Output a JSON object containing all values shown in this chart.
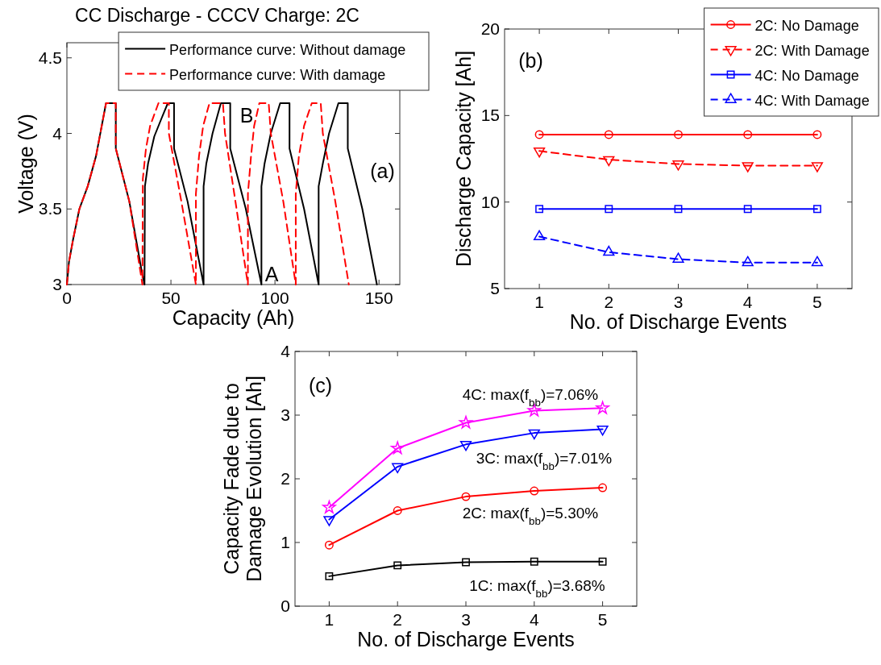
{
  "chart_data": [
    {
      "type": "line",
      "title": "CC Discharge - CCCV Charge: 2C",
      "xlabel": "Capacity (Ah)",
      "ylabel": "Voltage (V)",
      "xlim": [
        0,
        160
      ],
      "ylim": [
        3,
        4.6
      ],
      "xticks": [
        0,
        50,
        100,
        150
      ],
      "yticks": [
        3,
        3.5,
        4,
        4.5
      ],
      "legend": "top right",
      "annotations": [
        "(a)",
        "A",
        "B"
      ],
      "series": [
        {
          "name": "Performance curve: Without damage",
          "color": "#000000",
          "line_style": "solid",
          "x": [
            0,
            1,
            3,
            6,
            10,
            14,
            18.8,
            23.5,
            23.5,
            30,
            35.8,
            37.3,
            37.5,
            39,
            42,
            45.5,
            48.5,
            51.5,
            51.5,
            58,
            65.7,
            65.7,
            67,
            70,
            74,
            78.5,
            78.5,
            86,
            93.5,
            93.5,
            95,
            98,
            102.5,
            107,
            107,
            114,
            121,
            121,
            123,
            126,
            130.5,
            135,
            135,
            142,
            149
          ],
          "values": [
            3.0,
            3.15,
            3.3,
            3.5,
            3.65,
            3.85,
            4.2,
            4.2,
            3.9,
            3.55,
            3.1,
            3.0,
            3.65,
            3.8,
            3.98,
            4.1,
            4.2,
            4.2,
            3.9,
            3.55,
            3.0,
            3.65,
            3.8,
            4.0,
            4.2,
            4.2,
            3.9,
            3.5,
            3.0,
            3.65,
            3.8,
            4.0,
            4.2,
            4.2,
            3.9,
            3.5,
            3.0,
            3.65,
            3.8,
            4.0,
            4.2,
            4.2,
            3.9,
            3.5,
            3.0
          ]
        },
        {
          "name": "Performance curve: With damage",
          "color": "#ff0000",
          "line_style": "dashed",
          "x": [
            0,
            1,
            3,
            6,
            10,
            14,
            18.8,
            23.5,
            23.5,
            30,
            36.3,
            36.5,
            38,
            40,
            44,
            49,
            49,
            55,
            62,
            62,
            63.5,
            65.5,
            68.5,
            75,
            76,
            81,
            87,
            87,
            88.5,
            90,
            92.5,
            97,
            98,
            104,
            110,
            110,
            111.5,
            114,
            117.7,
            122,
            123,
            129,
            135.5
          ],
          "values": [
            3.0,
            3.15,
            3.3,
            3.5,
            3.65,
            3.85,
            4.2,
            4.2,
            3.9,
            3.55,
            3.0,
            3.7,
            3.9,
            4.05,
            4.2,
            4.2,
            4.0,
            3.55,
            3.0,
            3.6,
            3.85,
            4.05,
            4.2,
            4.2,
            4.0,
            3.55,
            3.0,
            3.6,
            3.85,
            4.05,
            4.2,
            4.2,
            4.0,
            3.55,
            3.0,
            3.6,
            3.85,
            4.05,
            4.2,
            4.2,
            4.0,
            3.55,
            3.0
          ]
        }
      ]
    },
    {
      "type": "line",
      "xlabel": "No. of Discharge Events",
      "ylabel": "Discharge Capacity [Ah]",
      "x": [
        1,
        2,
        3,
        4,
        5
      ],
      "xlim": [
        0.5,
        5.5
      ],
      "ylim": [
        5,
        20
      ],
      "xticks": [
        1,
        2,
        3,
        4,
        5
      ],
      "yticks": [
        5,
        10,
        15,
        20
      ],
      "legend": "top right",
      "annotations": [
        "(b)"
      ],
      "series": [
        {
          "name": "2C: No Damage",
          "color": "#ff0000",
          "line_style": "solid",
          "marker": "circle",
          "values": [
            13.9,
            13.9,
            13.9,
            13.9,
            13.9
          ]
        },
        {
          "name": "2C: With Damage",
          "color": "#ff0000",
          "line_style": "dashed",
          "marker": "triangle-down",
          "values": [
            12.95,
            12.45,
            12.2,
            12.1,
            12.1
          ]
        },
        {
          "name": "4C: No Damage",
          "color": "#0000ff",
          "line_style": "solid",
          "marker": "square",
          "values": [
            9.6,
            9.6,
            9.6,
            9.6,
            9.6
          ]
        },
        {
          "name": "4C: With Damage",
          "color": "#0000ff",
          "line_style": "dashed",
          "marker": "triangle",
          "values": [
            8.0,
            7.1,
            6.7,
            6.5,
            6.5
          ]
        }
      ]
    },
    {
      "type": "line",
      "xlabel": "No. of Discharge Events",
      "ylabel": "Capacity Fade due to\nDamage Evolution [Ah]",
      "x": [
        1,
        2,
        3,
        4,
        5
      ],
      "xlim": [
        0.5,
        5.5
      ],
      "ylim": [
        0,
        4
      ],
      "xticks": [
        1,
        2,
        3,
        4,
        5
      ],
      "yticks": [
        0,
        1,
        2,
        3,
        4
      ],
      "annotations": [
        "(c)",
        "4C: max(f$_{bb}$)=7.06%",
        "3C: max(f$_{bb}$)=7.01%",
        "2C: max(f$_{bb}$)=5.30%",
        "1C: max(f$_{bb}$)=3.68%"
      ],
      "series": [
        {
          "color": "#ff00ff",
          "line_style": "solid",
          "marker": "star",
          "values": [
            1.55,
            2.48,
            2.88,
            3.07,
            3.11
          ]
        },
        {
          "color": "#0000ff",
          "line_style": "solid",
          "marker": "triangle-down",
          "values": [
            1.36,
            2.19,
            2.54,
            2.72,
            2.78
          ]
        },
        {
          "color": "#ff0000",
          "line_style": "solid",
          "marker": "circle",
          "values": [
            0.96,
            1.5,
            1.72,
            1.81,
            1.86
          ]
        },
        {
          "color": "#000000",
          "line_style": "solid",
          "marker": "square",
          "values": [
            0.47,
            0.64,
            0.69,
            0.7,
            0.7
          ]
        }
      ]
    }
  ]
}
